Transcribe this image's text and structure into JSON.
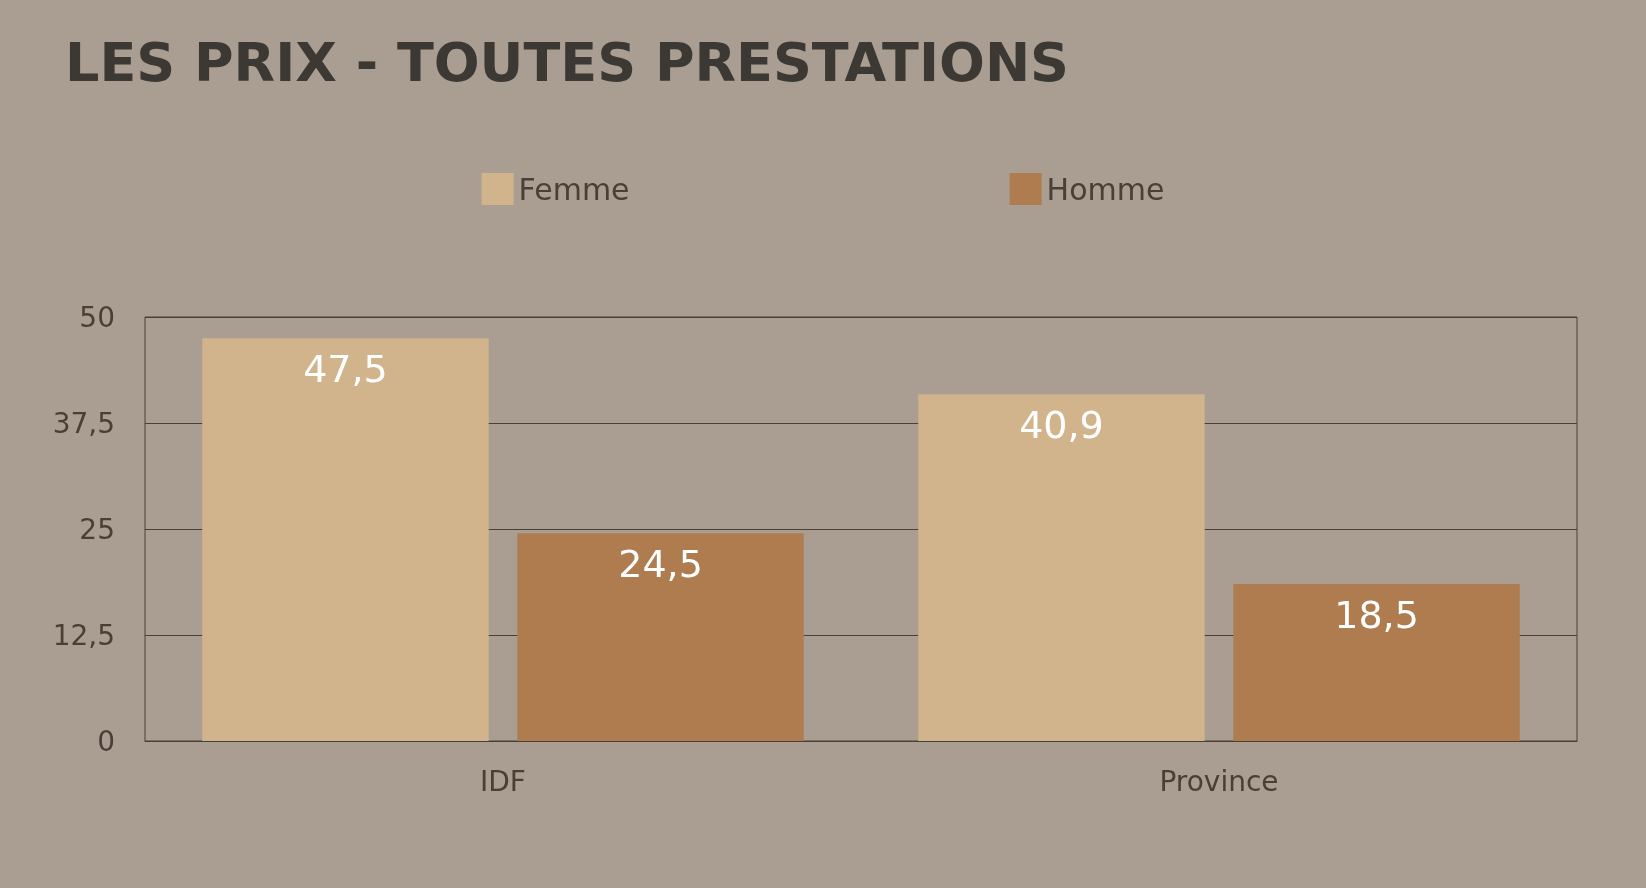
{
  "chart_data": {
    "type": "bar",
    "title": "LES PRIX - TOUTES PRESTATIONS",
    "categories": [
      "IDF",
      "Province"
    ],
    "series": [
      {
        "name": "Femme",
        "color": "#d2b48c",
        "values": [
          47.5,
          40.9
        ],
        "value_labels": [
          "47,5",
          "40,9"
        ]
      },
      {
        "name": "Homme",
        "color": "#ae7c4e",
        "values": [
          24.5,
          18.5
        ],
        "value_labels": [
          "24,5",
          "18,5"
        ]
      }
    ],
    "ylim": [
      0,
      50
    ],
    "yticks": [
      0,
      {
        "value": 12.5,
        "label": "12,5"
      },
      25,
      {
        "value": 37.5,
        "label": "37,5"
      },
      50
    ],
    "grid": "y",
    "legend": "top"
  }
}
